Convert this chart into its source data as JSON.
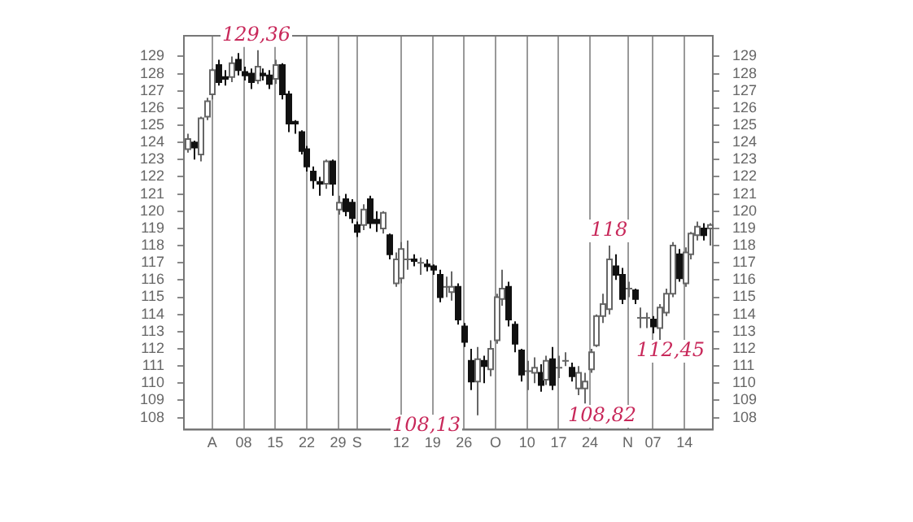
{
  "chart_data": {
    "type": "candlestick",
    "categories": [
      null,
      null,
      null,
      null,
      "A",
      null,
      null,
      null,
      null,
      "08",
      null,
      null,
      null,
      null,
      "15",
      null,
      null,
      null,
      null,
      "22",
      null,
      null,
      null,
      null,
      "29",
      null,
      null,
      "S",
      null,
      null,
      null,
      null,
      null,
      null,
      "12",
      null,
      null,
      null,
      null,
      "19",
      null,
      null,
      null,
      null,
      "26",
      null,
      null,
      null,
      null,
      "O",
      null,
      null,
      null,
      null,
      "10",
      null,
      null,
      null,
      null,
      "17",
      null,
      null,
      null,
      null,
      "24",
      null,
      null,
      null,
      null,
      null,
      "N",
      null,
      null,
      null,
      "07",
      null,
      null,
      null,
      null,
      "14",
      null,
      null,
      null,
      null
    ],
    "ohlc": [
      [
        123.6,
        124.5,
        123.4,
        124.2
      ],
      [
        124.0,
        124.1,
        123.0,
        123.7
      ],
      [
        123.3,
        125.5,
        122.9,
        125.4
      ],
      [
        125.5,
        126.6,
        125.3,
        126.4
      ],
      [
        126.8,
        128.3,
        126.5,
        128.2
      ],
      [
        128.5,
        128.8,
        127.3,
        127.5
      ],
      [
        127.8,
        128.2,
        127.3,
        127.7
      ],
      [
        127.8,
        129.0,
        127.5,
        128.6
      ],
      [
        128.8,
        129.2,
        127.9,
        128.2
      ],
      [
        128.1,
        128.4,
        127.6,
        127.9
      ],
      [
        128.0,
        128.3,
        127.1,
        127.5
      ],
      [
        127.6,
        129.36,
        127.4,
        128.4
      ],
      [
        128.0,
        128.3,
        127.6,
        127.9
      ],
      [
        127.9,
        128.2,
        127.1,
        127.4
      ],
      [
        127.7,
        128.8,
        127.4,
        128.5
      ],
      [
        128.5,
        128.6,
        126.5,
        126.8
      ],
      [
        126.8,
        127.0,
        124.6,
        125.1
      ],
      [
        125.2,
        125.3,
        124.5,
        125.1
      ],
      [
        124.6,
        124.7,
        123.3,
        123.5
      ],
      [
        123.6,
        123.8,
        122.3,
        122.6
      ],
      [
        122.3,
        122.6,
        121.3,
        121.8
      ],
      [
        121.7,
        122.0,
        120.9,
        121.6
      ],
      [
        121.6,
        123.0,
        121.3,
        122.9
      ],
      [
        122.9,
        123.0,
        120.9,
        121.6
      ],
      [
        120.1,
        120.9,
        119.8,
        120.5
      ],
      [
        120.7,
        121.0,
        119.7,
        120.0
      ],
      [
        120.5,
        120.7,
        119.3,
        119.6
      ],
      [
        119.2,
        119.4,
        118.5,
        118.8
      ],
      [
        119.2,
        120.4,
        118.9,
        120.1
      ],
      [
        120.7,
        120.9,
        119.0,
        119.3
      ],
      [
        119.5,
        120.0,
        118.8,
        119.3
      ],
      [
        119.0,
        120.0,
        118.7,
        119.9
      ],
      [
        118.6,
        118.7,
        117.2,
        117.5
      ],
      [
        115.8,
        117.6,
        115.6,
        117.2
      ],
      [
        116.1,
        118.2,
        115.8,
        117.8
      ],
      [
        117.2,
        118.3,
        116.6,
        117.2
      ],
      [
        117.2,
        117.5,
        116.8,
        117.1
      ],
      [
        117.0,
        117.3,
        116.3,
        117.0
      ],
      [
        116.9,
        117.2,
        116.5,
        116.8
      ],
      [
        116.8,
        116.9,
        116.3,
        116.6
      ],
      [
        116.3,
        116.6,
        114.7,
        115.0
      ],
      [
        115.6,
        116.2,
        115.0,
        115.6
      ],
      [
        115.3,
        116.5,
        114.8,
        115.6
      ],
      [
        115.6,
        115.8,
        113.4,
        113.7
      ],
      [
        113.3,
        113.5,
        112.1,
        112.4
      ],
      [
        111.3,
        112.0,
        109.6,
        110.1
      ],
      [
        110.1,
        112.1,
        108.13,
        111.4
      ],
      [
        111.3,
        111.6,
        110.0,
        111.0
      ],
      [
        110.8,
        112.5,
        110.4,
        112.0
      ],
      [
        112.5,
        115.2,
        112.3,
        115.0
      ],
      [
        114.9,
        116.6,
        114.5,
        115.5
      ],
      [
        115.6,
        115.9,
        113.3,
        113.7
      ],
      [
        113.4,
        113.6,
        111.8,
        112.3
      ],
      [
        111.9,
        112.0,
        110.1,
        110.5
      ],
      [
        110.7,
        111.3,
        109.6,
        110.7
      ],
      [
        110.6,
        111.5,
        110.0,
        110.9
      ],
      [
        110.6,
        111.1,
        109.5,
        109.9
      ],
      [
        110.2,
        111.6,
        109.9,
        111.3
      ],
      [
        111.4,
        112.1,
        109.6,
        109.9
      ],
      [
        110.9,
        111.6,
        110.3,
        110.9
      ],
      [
        111.3,
        111.8,
        111.0,
        111.3
      ],
      [
        110.9,
        111.2,
        110.1,
        110.4
      ],
      [
        109.7,
        111.0,
        109.3,
        110.6
      ],
      [
        109.7,
        110.6,
        108.82,
        110.1
      ],
      [
        110.8,
        112.0,
        110.6,
        111.8
      ],
      [
        112.2,
        114.0,
        112.1,
        113.9
      ],
      [
        113.9,
        115.2,
        113.5,
        114.6
      ],
      [
        114.3,
        118.0,
        114.0,
        117.2
      ],
      [
        116.8,
        117.5,
        116.0,
        116.3
      ],
      [
        116.3,
        116.7,
        114.6,
        114.9
      ],
      [
        115.5,
        115.9,
        115.0,
        115.5
      ],
      [
        115.4,
        115.5,
        114.6,
        114.9
      ],
      [
        113.8,
        114.4,
        113.2,
        113.8
      ],
      [
        113.8,
        114.1,
        113.2,
        113.8
      ],
      [
        113.7,
        113.9,
        112.9,
        113.3
      ],
      [
        113.2,
        114.6,
        112.45,
        114.4
      ],
      [
        114.1,
        115.5,
        113.9,
        115.2
      ],
      [
        115.2,
        118.2,
        115.0,
        118.0
      ],
      [
        117.5,
        117.8,
        115.9,
        116.1
      ],
      [
        115.8,
        117.9,
        115.6,
        117.6
      ],
      [
        117.5,
        118.8,
        117.2,
        118.7
      ],
      [
        118.6,
        119.4,
        118.3,
        119.1
      ],
      [
        119.0,
        119.3,
        118.3,
        118.6
      ],
      [
        119.0,
        119.3,
        118.0,
        119.2
      ]
    ],
    "ylim": [
      107.3,
      130.2
    ],
    "yticks": [
      108,
      109,
      110,
      111,
      112,
      113,
      114,
      115,
      116,
      117,
      118,
      119,
      120,
      121,
      122,
      123,
      124,
      125,
      126,
      127,
      128,
      129
    ],
    "y2lim": [
      107.3,
      130.2
    ],
    "y2ticks": [
      108,
      109,
      110,
      111,
      112,
      113,
      114,
      115,
      116,
      117,
      118,
      119,
      120,
      121,
      122,
      123,
      124,
      125,
      126,
      127,
      128,
      129
    ],
    "grid": "x",
    "legend": false,
    "annotations": [
      {
        "text": "129,36",
        "y": 129.36
      },
      "108,13",
      "108,82",
      {
        "text": "118",
        "y": 118.0
      },
      "112,45"
    ]
  }
}
